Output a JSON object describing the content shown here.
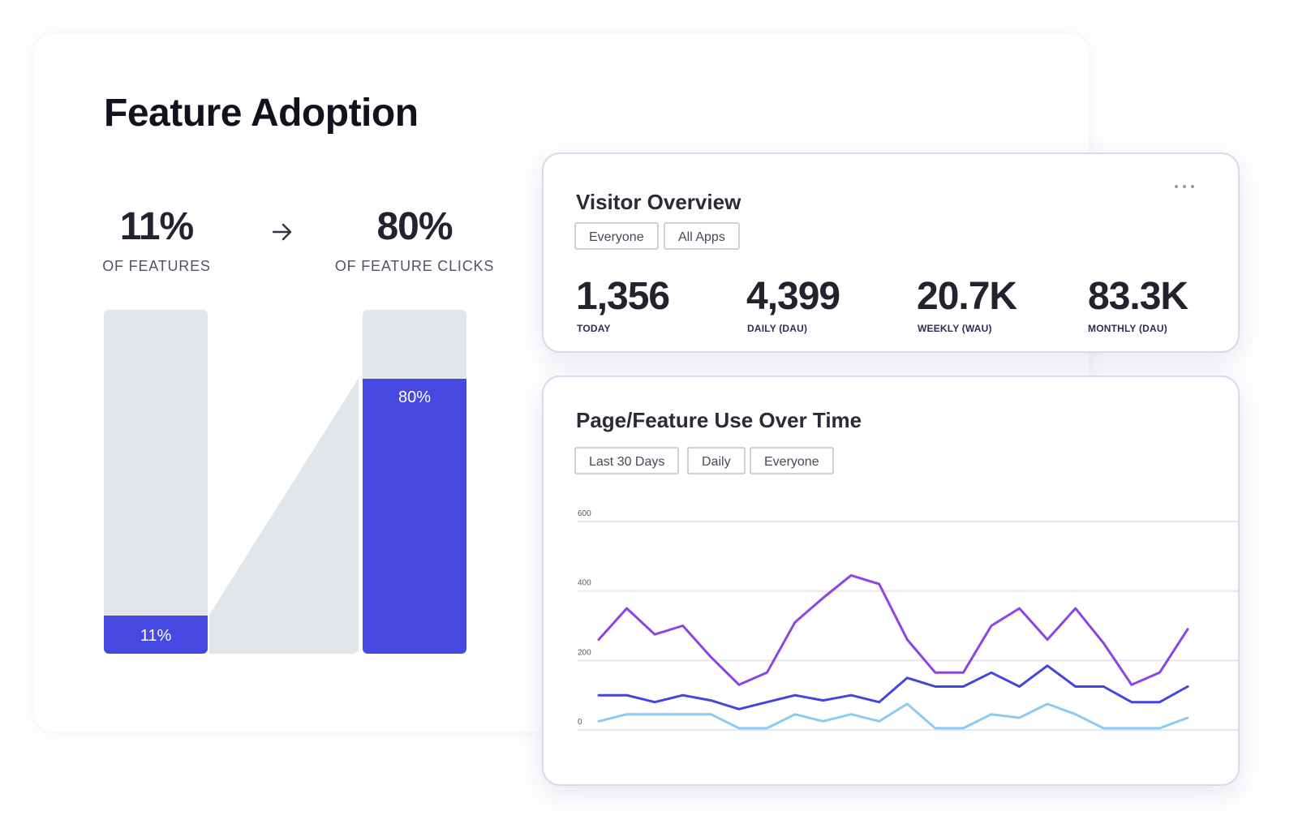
{
  "feature_adoption": {
    "title": "Feature Adoption",
    "left_stat": {
      "value": "11%",
      "caption": "OF FEATURES",
      "fraction": 0.11
    },
    "right_stat": {
      "value": "80%",
      "caption": "OF FEATURE CLICKS",
      "fraction": 0.8
    },
    "arrow_icon": "arrow-right-icon",
    "colors": {
      "fill": "#4548e1",
      "track": "#e1e6ea"
    }
  },
  "visitor_overview": {
    "title": "Visitor Overview",
    "menu_icon": "more-horizontal-icon",
    "filters": [
      "Everyone",
      "All Apps"
    ],
    "metrics": [
      {
        "value": "1,356",
        "label": "TODAY"
      },
      {
        "value": "4,399",
        "label": "DAILY (DAU)"
      },
      {
        "value": "20.7K",
        "label": "WEEKLY (WAU)"
      },
      {
        "value": "83.3K",
        "label": "MONTHLY (DAU)"
      }
    ]
  },
  "usage_over_time": {
    "title": "Page/Feature Use Over Time",
    "filters": [
      "Last 30 Days",
      "Daily",
      "Everyone"
    ]
  },
  "chart_data": {
    "type": "line",
    "ylim": [
      0,
      600
    ],
    "y_ticks": [
      "0",
      "200",
      "400",
      "600"
    ],
    "grid": true,
    "series": [
      {
        "color": "#8b44e6",
        "values": [
          260,
          350,
          275,
          300,
          210,
          130,
          165,
          310,
          380,
          445,
          420,
          260,
          165,
          165,
          300,
          350,
          260,
          350,
          250,
          130,
          165,
          290
        ]
      },
      {
        "color": "#4545dc",
        "values": [
          100,
          100,
          80,
          100,
          85,
          60,
          80,
          100,
          85,
          100,
          80,
          150,
          125,
          125,
          165,
          125,
          185,
          125,
          125,
          80,
          80,
          125
        ]
      },
      {
        "color": "#8ccaf4",
        "values": [
          25,
          45,
          45,
          45,
          45,
          5,
          5,
          45,
          25,
          45,
          25,
          75,
          5,
          5,
          45,
          35,
          75,
          45,
          5,
          5,
          5,
          35
        ]
      }
    ]
  }
}
